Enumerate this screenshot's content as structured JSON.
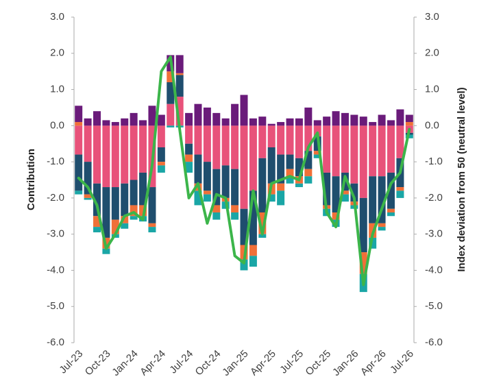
{
  "chart_data": {
    "type": "stacked-bar-line",
    "y_title": "Contribution",
    "y2_title": "Index deviation from 50 (neutral level)",
    "categories": [
      "Jul-23",
      null,
      null,
      "Oct-23",
      null,
      null,
      "Jan-24",
      null,
      null,
      "Apr-24",
      null,
      null,
      "Jul-24",
      null,
      null,
      "Oct-24",
      null,
      null,
      "Jan-25",
      null,
      null,
      "Apr-25",
      null,
      null,
      "Jul-25",
      null,
      null,
      "Oct-25",
      null,
      null,
      "Jan-26",
      null,
      null,
      "Apr-26",
      null,
      null,
      "Jul-26"
    ],
    "ylim": [
      -6,
      3
    ],
    "yticks": [
      {
        "value": 3,
        "label": "3.0"
      },
      {
        "value": 2,
        "label": "2.0"
      },
      {
        "value": 1,
        "label": "1.0"
      },
      {
        "value": 0,
        "label": "0.0"
      },
      {
        "value": -1,
        "label": "-1.0"
      },
      {
        "value": -2,
        "label": "-2.0"
      },
      {
        "value": -3,
        "label": "-3.0"
      },
      {
        "value": -4,
        "label": "-4.0"
      },
      {
        "value": -5,
        "label": "-5.0"
      },
      {
        "value": -6,
        "label": "-6.0"
      }
    ],
    "y2lim": [
      -6,
      3
    ],
    "y2ticks": [
      {
        "value": 3,
        "label": "3.0"
      },
      {
        "value": 2,
        "label": "2.0"
      },
      {
        "value": 1,
        "label": "1.0"
      },
      {
        "value": 0,
        "label": "0.0"
      },
      {
        "value": -1,
        "label": "-1.0"
      },
      {
        "value": -2,
        "label": "-2.0"
      },
      {
        "value": -3,
        "label": "-3.0"
      },
      {
        "value": -4,
        "label": "-4.0"
      },
      {
        "value": -5,
        "label": "-5.0"
      },
      {
        "value": -6,
        "label": "-6.0"
      }
    ],
    "series": [
      {
        "color": "#e8527a",
        "values": [
          -0.8,
          -1.0,
          -1.6,
          -1.7,
          -1.7,
          -1.6,
          -1.5,
          -1.3,
          -1.7,
          -0.6,
          0.6,
          0.8,
          -0.5,
          -0.8,
          -1.0,
          -1.2,
          -1.1,
          -1.2,
          -2.3,
          -1.8,
          -0.9,
          -0.6,
          -0.8,
          -0.8,
          -0.9,
          -0.7,
          -0.3,
          -1.3,
          -1.4,
          -1.3,
          -1.6,
          -2.0,
          -1.4,
          -1.4,
          -1.3,
          -0.9,
          -0.2
        ]
      },
      {
        "color": "#1f4e6e",
        "values": [
          -1.0,
          -0.9,
          -0.9,
          -1.4,
          -0.9,
          -0.9,
          -0.7,
          -0.9,
          -1.0,
          -0.4,
          0.6,
          0.6,
          -0.3,
          -0.8,
          -0.8,
          -1.0,
          -0.9,
          -1.0,
          -1.0,
          -1.5,
          -1.5,
          -1.0,
          -0.8,
          -0.4,
          -0.5,
          -0.5,
          -0.4,
          -0.9,
          -1.0,
          -0.5,
          -0.5,
          -1.5,
          -1.3,
          -1.3,
          -1.0,
          -0.8,
          -0.05
        ]
      },
      {
        "color": "#f07038",
        "values": [
          0.1,
          -0.1,
          -0.3,
          -0.3,
          -0.4,
          -0.2,
          -0.3,
          -0.3,
          -0.1,
          -0.1,
          0.3,
          0.05,
          -0.2,
          -0.2,
          -0.1,
          -0.2,
          -0.1,
          -0.2,
          -0.4,
          -0.3,
          -0.6,
          -0.3,
          -0.2,
          -0.2,
          -0.2,
          -0.2,
          -0.1,
          -0.1,
          -0.2,
          -0.1,
          -0.1,
          -0.6,
          -0.4,
          -0.1,
          -0.1,
          -0.1,
          0.1
        ]
      },
      {
        "color": "#1aa6a6",
        "values": [
          -0.1,
          -0.05,
          -0.15,
          -0.15,
          -0.1,
          -0.15,
          -0.1,
          -0.15,
          -0.15,
          -0.2,
          -0.05,
          -0.05,
          -0.3,
          -0.4,
          -0.2,
          -0.2,
          -0.2,
          -0.2,
          -0.3,
          -0.3,
          -0.1,
          -0.2,
          -0.4,
          -0.2,
          -0.1,
          -0.2,
          -0.1,
          -0.2,
          -0.2,
          -0.2,
          -0.1,
          -0.5,
          -0.3,
          -0.1,
          -0.1,
          -0.2,
          -0.1
        ]
      },
      {
        "color": "#6a1b7a",
        "values": [
          0.45,
          0.2,
          0.4,
          0.15,
          0.1,
          0.2,
          0.35,
          0.15,
          0.55,
          0.3,
          0.45,
          0.5,
          0.35,
          0.6,
          0.5,
          0.35,
          0.2,
          0.6,
          0.85,
          0.2,
          0.25,
          0.05,
          0.1,
          0.2,
          0.2,
          0.5,
          0.15,
          0.25,
          0.4,
          0.35,
          0.3,
          0.25,
          0.1,
          0.3,
          0.15,
          0.45,
          0.2
        ]
      },
      {
        "color": "#3cb54a",
        "type": "line",
        "axis": "y2",
        "values": [
          -1.45,
          -1.7,
          -2.2,
          -3.4,
          -3.0,
          -2.5,
          -2.4,
          -2.6,
          -1.1,
          1.5,
          1.9,
          -0.1,
          -2.0,
          -1.6,
          -2.7,
          -1.9,
          -2.0,
          -3.6,
          -3.8,
          -1.8,
          -3.0,
          -1.6,
          -1.5,
          -1.4,
          -1.5,
          -0.6,
          -0.2,
          -2.4,
          -2.8,
          -1.4,
          -2.0,
          -4.4,
          -3.0,
          -2.3,
          -1.6,
          -1.3,
          -0.1
        ]
      }
    ]
  }
}
